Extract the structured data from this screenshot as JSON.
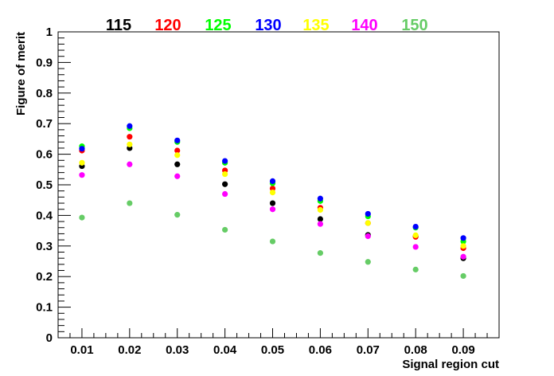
{
  "chart_data": {
    "type": "scatter",
    "xlabel": "Signal region cut",
    "ylabel": "Figure of merit",
    "xlim": [
      0.005,
      0.0975
    ],
    "ylim": [
      0,
      1
    ],
    "x_ticks": [
      "0.01",
      "0.02",
      "0.03",
      "0.04",
      "0.05",
      "0.06",
      "0.07",
      "0.08",
      "0.09"
    ],
    "y_ticks": [
      "0",
      "0.1",
      "0.2",
      "0.3",
      "0.4",
      "0.5",
      "0.6",
      "0.7",
      "0.8",
      "0.9",
      "1"
    ],
    "x": [
      0.01,
      0.02,
      0.03,
      0.04,
      0.05,
      0.06,
      0.07,
      0.08,
      0.09
    ],
    "grid": false,
    "legend_position": "top",
    "series": [
      {
        "name": "115",
        "color": "#000000",
        "values": [
          0.561,
          0.62,
          0.567,
          0.502,
          0.44,
          0.388,
          0.336,
          0.332,
          0.26
        ]
      },
      {
        "name": "120",
        "color": "#ff0000",
        "values": [
          0.612,
          0.657,
          0.612,
          0.547,
          0.488,
          0.425,
          0.375,
          0.33,
          0.293
        ]
      },
      {
        "name": "125",
        "color": "#00ff00",
        "values": [
          0.626,
          0.685,
          0.64,
          0.572,
          0.505,
          0.447,
          0.397,
          0.36,
          0.315
        ]
      },
      {
        "name": "130",
        "color": "#0000ff",
        "values": [
          0.618,
          0.692,
          0.645,
          0.578,
          0.512,
          0.455,
          0.405,
          0.363,
          0.326
        ]
      },
      {
        "name": "135",
        "color": "#ffff00",
        "values": [
          0.572,
          0.632,
          0.597,
          0.535,
          0.475,
          0.418,
          0.375,
          0.335,
          0.3
        ]
      },
      {
        "name": "140",
        "color": "#ff00ff",
        "values": [
          0.532,
          0.567,
          0.528,
          0.47,
          0.42,
          0.372,
          0.332,
          0.297,
          0.265
        ]
      },
      {
        "name": "150",
        "color": "#66cc66",
        "values": [
          0.393,
          0.44,
          0.402,
          0.353,
          0.315,
          0.277,
          0.248,
          0.223,
          0.202
        ]
      }
    ]
  }
}
